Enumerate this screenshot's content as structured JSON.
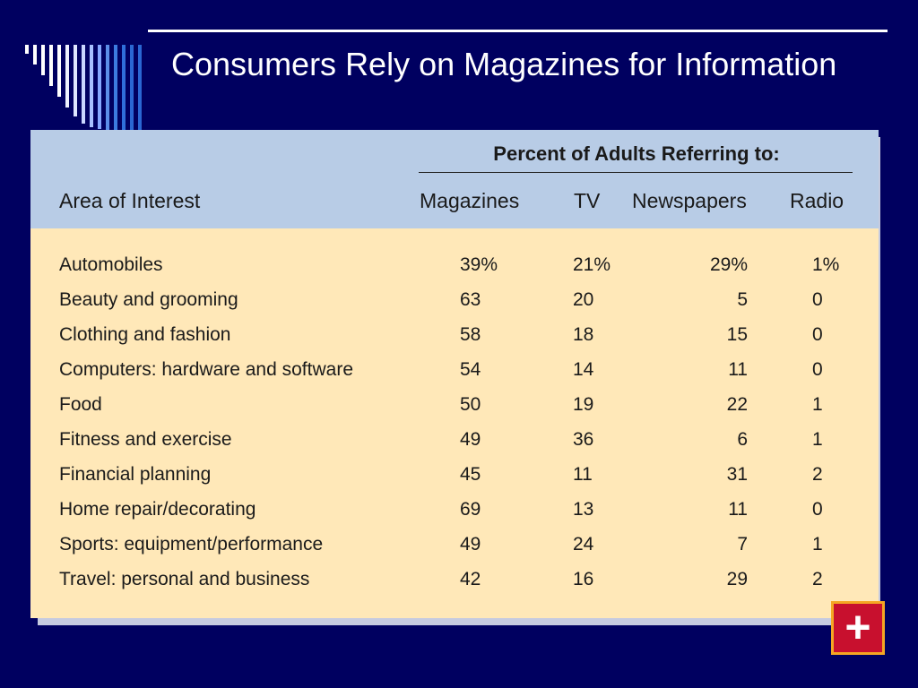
{
  "slide": {
    "title": "Consumers Rely on Magazines for Information"
  },
  "table": {
    "group_header": "Percent of Adults Referring to:",
    "columns": [
      "Area of Interest",
      "Magazines",
      "TV",
      "Newspapers",
      "Radio"
    ],
    "rows": [
      {
        "area": "Automobiles",
        "magazines": "39%",
        "tv": "21%",
        "newspapers": "29%",
        "radio": "1%"
      },
      {
        "area": "Beauty and grooming",
        "magazines": "63",
        "tv": "20",
        "newspapers": "5",
        "radio": "0"
      },
      {
        "area": "Clothing and fashion",
        "magazines": "58",
        "tv": "18",
        "newspapers": "15",
        "radio": "0"
      },
      {
        "area": "Computers: hardware and software",
        "magazines": "54",
        "tv": "14",
        "newspapers": "11",
        "radio": "0"
      },
      {
        "area": "Food",
        "magazines": "50",
        "tv": "19",
        "newspapers": "22",
        "radio": "1"
      },
      {
        "area": "Fitness and exercise",
        "magazines": "49",
        "tv": "36",
        "newspapers": "6",
        "radio": "1"
      },
      {
        "area": "Financial planning",
        "magazines": "45",
        "tv": "11",
        "newspapers": "31",
        "radio": "2"
      },
      {
        "area": "Home repair/decorating",
        "magazines": "69",
        "tv": "13",
        "newspapers": "11",
        "radio": "0"
      },
      {
        "area": "Sports: equipment/performance",
        "magazines": "49",
        "tv": "24",
        "newspapers": "7",
        "radio": "1"
      },
      {
        "area": "Travel: personal and business",
        "magazines": "42",
        "tv": "16",
        "newspapers": "29",
        "radio": "2"
      }
    ]
  },
  "nav": {
    "plus_label": "+"
  },
  "colors": {
    "background": "#000060",
    "header_fill": "#b8cce6",
    "body_fill": "#ffe8b8",
    "plus_fill": "#c8102e",
    "plus_border": "#f5a623"
  },
  "icons": {
    "decoration": "vertical-stripes-decoration",
    "plus": "plus-icon"
  }
}
